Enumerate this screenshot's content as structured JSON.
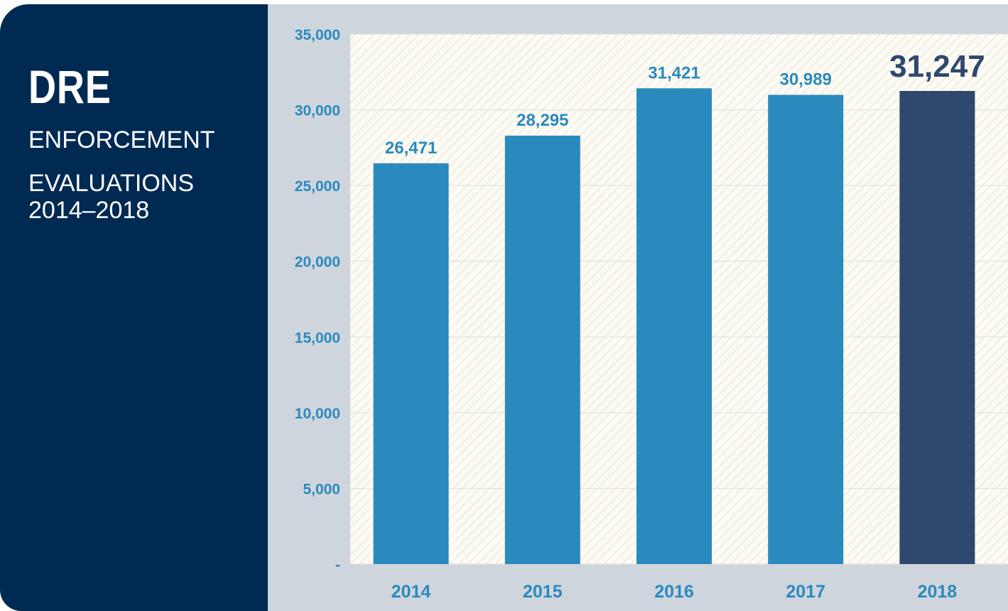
{
  "panel": {
    "title": "DRE",
    "subtitle_lines": [
      "ENFORCEMENT",
      "EVALUATIONS",
      "2014–2018"
    ]
  },
  "chart_data": {
    "type": "bar",
    "title": "",
    "xlabel": "",
    "ylabel": "",
    "categories": [
      "2014",
      "2015",
      "2016",
      "2017",
      "2018"
    ],
    "values": [
      26471,
      28295,
      31421,
      30989,
      31247
    ],
    "value_labels": [
      "26,471",
      "28,295",
      "31,421",
      "30,989",
      "31,247"
    ],
    "ylim": [
      0,
      35000
    ],
    "yticks": [
      0,
      5000,
      10000,
      15000,
      20000,
      25000,
      30000,
      35000
    ],
    "ytick_labels": [
      "-",
      "5,000",
      "10,000",
      "15,000",
      "20,000",
      "25,000",
      "30,000",
      "35,000"
    ],
    "grid": true,
    "highlight_index": 4,
    "colors": {
      "bar": "#2a8abd",
      "highlight_bar": "#2f486e",
      "label": "#2a8abd",
      "highlight_label": "#2f486e",
      "plot_background": "#fdfbf5",
      "hatch": "#ebe3cc",
      "grid": "#dcdcdc"
    }
  }
}
